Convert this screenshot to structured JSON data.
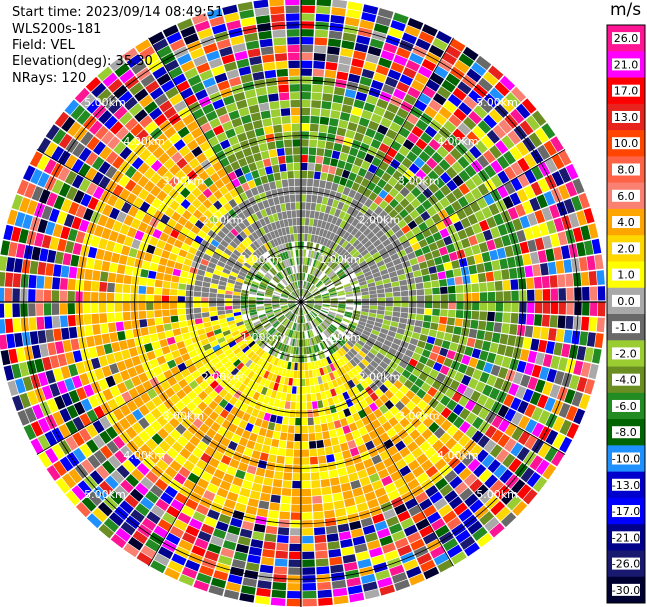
{
  "header": {
    "start_time": "Start time: 2023/09/14 08:49:51",
    "instrument": "WLS200s-181",
    "field": "Field: VEL",
    "elevation": "Elevation(deg): 35.30",
    "nrays": "NRays: 120"
  },
  "colorbar": {
    "title": "m/s",
    "labels": [
      "26.0",
      "21.0",
      "17.0",
      "13.0",
      "10.0",
      "8.0",
      "6.0",
      "4.0",
      "2.0",
      "1.0",
      "0.0",
      "-1.0",
      "-2.0",
      "-4.0",
      "-6.0",
      "-8.0",
      "-10.0",
      "-13.0",
      "-17.0",
      "-21.0",
      "-26.0",
      "-30.0"
    ],
    "colors": [
      "#ff1493",
      "#ff00ff",
      "#ff0000",
      "#e8221c",
      "#ff4500",
      "#ff6347",
      "#fa8072",
      "#ffa500",
      "#ffd700",
      "#ffff00",
      "#a9a9a9",
      "#696969",
      "#9acd32",
      "#6b8e23",
      "#228b22",
      "#006400",
      "#1e90ff",
      "#0000cd",
      "#0000ff",
      "#00008b",
      "#191970",
      "#000030"
    ]
  },
  "chart_data": {
    "type": "heatmap",
    "title": "",
    "field": "VEL",
    "units": "m/s",
    "nrays": 120,
    "elevation_deg": 35.3,
    "range_rings_km": [
      1.0,
      2.0,
      3.0,
      4.0,
      5.0
    ],
    "ring_labels": [
      "1.00km",
      "2.00km",
      "3.00km",
      "4.00km",
      "5.00km"
    ],
    "max_range_km": 5.5,
    "pattern": {
      "inner_rings_km": [
        0,
        1.0
      ],
      "velocity_near_zero_region": "north and east quadrants",
      "positive_velocity_region": "south and west quadrants",
      "noise_beyond_km": 4.0
    }
  }
}
